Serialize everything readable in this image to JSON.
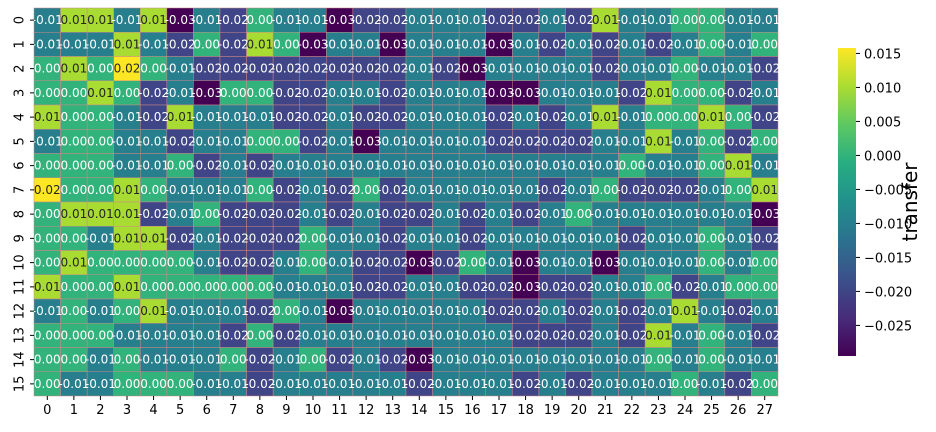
{
  "chart_data": {
    "type": "heatmap",
    "title": "",
    "xlabel": "",
    "ylabel": "",
    "x_categories": [
      "0",
      "1",
      "2",
      "3",
      "4",
      "5",
      "6",
      "7",
      "8",
      "9",
      "10",
      "11",
      "12",
      "13",
      "14",
      "15",
      "16",
      "17",
      "18",
      "19",
      "20",
      "21",
      "22",
      "23",
      "24",
      "25",
      "26",
      "27"
    ],
    "y_categories": [
      "0",
      "1",
      "2",
      "3",
      "4",
      "5",
      "6",
      "7",
      "8",
      "9",
      "10",
      "11",
      "12",
      "13",
      "14",
      "15"
    ],
    "colorbar": {
      "label": "transfer",
      "ticks": [
        0.015,
        0.01,
        0.005,
        0.0,
        -0.005,
        -0.01,
        -0.015,
        -0.02,
        -0.025
      ],
      "tick_labels": [
        "0.015",
        "0.010",
        "0.005",
        "0.000",
        "−0.005",
        "−0.010",
        "−0.015",
        "−0.020",
        "−0.025"
      ],
      "vmin": -0.0295,
      "vmax": 0.0158,
      "colormap": "viridis"
    },
    "cell_annotations": "values shown to two decimals in each cell",
    "values": [
      [
        -0.01,
        0.01,
        0.01,
        -0.01,
        0.01,
        -0.03,
        -0.01,
        -0.02,
        0.0,
        -0.01,
        -0.01,
        -0.03,
        -0.02,
        -0.02,
        -0.01,
        -0.01,
        -0.01,
        -0.02,
        -0.02,
        -0.01,
        -0.02,
        0.01,
        -0.01,
        -0.01,
        0.0,
        0.0,
        -0.01,
        -0.01
      ],
      [
        -0.01,
        -0.01,
        -0.01,
        0.01,
        -0.01,
        -0.02,
        0.0,
        -0.02,
        0.01,
        0.0,
        -0.03,
        -0.01,
        -0.01,
        -0.03,
        -0.01,
        -0.01,
        -0.01,
        -0.03,
        -0.01,
        -0.02,
        -0.01,
        -0.02,
        -0.01,
        -0.02,
        -0.01,
        -0.0,
        -0.01,
        0.0
      ],
      [
        -0.0,
        0.01,
        0.0,
        0.02,
        -0.0,
        -0.01,
        -0.02,
        -0.02,
        -0.02,
        -0.02,
        -0.02,
        -0.02,
        -0.02,
        -0.02,
        -0.01,
        -0.02,
        -0.03,
        -0.01,
        -0.01,
        -0.01,
        -0.01,
        -0.02,
        -0.01,
        -0.01,
        -0.0,
        -0.01,
        -0.01,
        -0.02
      ],
      [
        -0.0,
        -0.0,
        0.01,
        0.0,
        -0.02,
        -0.01,
        -0.03,
        0.0,
        -0.0,
        -0.02,
        -0.02,
        -0.01,
        -0.01,
        -0.02,
        -0.01,
        -0.01,
        -0.01,
        -0.03,
        -0.03,
        -0.01,
        -0.01,
        -0.01,
        -0.02,
        0.01,
        0.0,
        -0.0,
        -0.02,
        -0.01
      ],
      [
        0.01,
        0.0,
        0.0,
        -0.01,
        -0.02,
        0.01,
        -0.01,
        -0.01,
        -0.01,
        -0.02,
        -0.02,
        -0.01,
        -0.02,
        -0.02,
        -0.01,
        -0.01,
        -0.01,
        -0.02,
        -0.01,
        -0.02,
        -0.01,
        0.01,
        -0.01,
        -0.0,
        -0.0,
        0.01,
        0.0,
        -0.02
      ],
      [
        -0.01,
        0.0,
        -0.0,
        -0.01,
        -0.01,
        -0.02,
        -0.01,
        -0.01,
        -0.0,
        -0.0,
        -0.02,
        -0.01,
        -0.03,
        -0.01,
        -0.01,
        -0.01,
        -0.01,
        -0.02,
        -0.02,
        -0.02,
        -0.02,
        -0.01,
        -0.01,
        0.01,
        -0.01,
        -0.0,
        -0.02,
        -0.0
      ],
      [
        -0.0,
        -0.0,
        -0.0,
        -0.01,
        -0.01,
        -0.0,
        -0.02,
        -0.01,
        -0.02,
        -0.01,
        -0.01,
        -0.01,
        -0.01,
        -0.01,
        -0.01,
        -0.01,
        -0.01,
        -0.01,
        -0.01,
        -0.01,
        -0.01,
        -0.01,
        0.0,
        -0.01,
        -0.01,
        -0.0,
        0.01,
        -0.01
      ],
      [
        0.02,
        -0.0,
        -0.0,
        0.01,
        -0.0,
        -0.01,
        -0.01,
        -0.01,
        0.0,
        -0.02,
        -0.01,
        -0.02,
        -0.0,
        -0.02,
        -0.01,
        -0.01,
        -0.01,
        -0.01,
        -0.01,
        -0.02,
        -0.01,
        -0.0,
        -0.02,
        -0.02,
        -0.02,
        -0.01,
        0.0,
        0.01
      ],
      [
        -0.0,
        0.01,
        0.01,
        0.01,
        -0.02,
        -0.01,
        0.0,
        -0.02,
        -0.02,
        -0.02,
        -0.01,
        -0.02,
        -0.01,
        -0.02,
        -0.02,
        -0.01,
        -0.02,
        -0.01,
        -0.02,
        -0.01,
        -0.0,
        -0.01,
        -0.01,
        -0.01,
        -0.01,
        -0.01,
        -0.01,
        -0.03
      ],
      [
        -0.0,
        -0.0,
        -0.01,
        0.01,
        0.01,
        -0.02,
        -0.01,
        -0.02,
        -0.02,
        -0.02,
        -0.0,
        -0.01,
        -0.01,
        -0.02,
        -0.01,
        -0.01,
        -0.02,
        -0.01,
        -0.01,
        -0.01,
        -0.01,
        -0.01,
        -0.02,
        -0.01,
        -0.01,
        -0.0,
        -0.01,
        -0.02
      ],
      [
        -0.0,
        0.01,
        -0.0,
        -0.0,
        -0.0,
        -0.0,
        -0.01,
        -0.02,
        -0.02,
        -0.01,
        -0.0,
        -0.01,
        -0.02,
        -0.02,
        -0.03,
        -0.02,
        -0.0,
        -0.01,
        -0.03,
        -0.01,
        -0.01,
        -0.03,
        -0.01,
        -0.01,
        -0.01,
        -0.0,
        -0.01,
        -0.0
      ],
      [
        0.01,
        -0.0,
        0.0,
        0.01,
        0.0,
        0.0,
        0.0,
        -0.0,
        0.0,
        -0.01,
        -0.01,
        -0.01,
        -0.02,
        -0.02,
        -0.01,
        -0.01,
        -0.02,
        -0.02,
        -0.03,
        -0.02,
        -0.02,
        -0.01,
        -0.01,
        -0.0,
        -0.02,
        -0.01,
        -0.0,
        0.0
      ],
      [
        -0.01,
        -0.0,
        -0.01,
        -0.0,
        0.01,
        -0.01,
        -0.01,
        -0.01,
        -0.02,
        -0.0,
        -0.01,
        -0.03,
        -0.01,
        -0.01,
        -0.01,
        -0.01,
        -0.01,
        -0.02,
        -0.02,
        -0.01,
        -0.02,
        -0.01,
        -0.02,
        -0.01,
        0.01,
        -0.01,
        -0.02,
        -0.01
      ],
      [
        -0.0,
        -0.0,
        -0.0,
        -0.01,
        -0.01,
        -0.01,
        -0.01,
        -0.02,
        -0.0,
        -0.02,
        -0.01,
        -0.01,
        -0.01,
        -0.01,
        -0.01,
        -0.01,
        -0.01,
        -0.01,
        -0.02,
        -0.02,
        -0.02,
        -0.01,
        -0.02,
        0.01,
        -0.01,
        -0.0,
        -0.01,
        -0.02
      ],
      [
        -0.0,
        -0.0,
        -0.01,
        0.0,
        -0.01,
        -0.01,
        -0.01,
        0.0,
        -0.02,
        -0.01,
        -0.0,
        -0.02,
        -0.01,
        -0.02,
        -0.03,
        -0.01,
        -0.01,
        -0.01,
        -0.01,
        -0.01,
        -0.01,
        -0.01,
        -0.01,
        -0.0,
        -0.01,
        -0.0,
        -0.01,
        -0.01
      ],
      [
        -0.0,
        -0.01,
        -0.01,
        -0.0,
        -0.0,
        0.0,
        -0.01,
        -0.01,
        -0.02,
        -0.01,
        -0.01,
        -0.01,
        -0.01,
        -0.01,
        -0.02,
        -0.01,
        -0.01,
        -0.01,
        -0.02,
        -0.01,
        -0.02,
        -0.01,
        -0.01,
        -0.01,
        0.0,
        -0.01,
        -0.02,
        -0.0
      ]
    ]
  }
}
